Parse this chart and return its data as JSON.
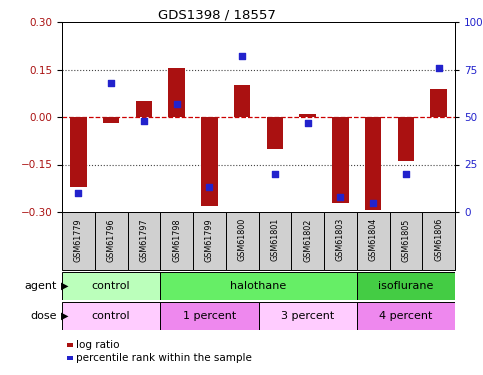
{
  "title": "GDS1398 / 18557",
  "samples": [
    "GSM61779",
    "GSM61796",
    "GSM61797",
    "GSM61798",
    "GSM61799",
    "GSM61800",
    "GSM61801",
    "GSM61802",
    "GSM61803",
    "GSM61804",
    "GSM61805",
    "GSM61806"
  ],
  "log_ratio": [
    -0.22,
    -0.02,
    0.05,
    0.155,
    -0.28,
    0.1,
    -0.1,
    0.01,
    -0.27,
    -0.295,
    -0.14,
    0.09
  ],
  "percentile_rank": [
    10,
    68,
    48,
    57,
    13,
    82,
    20,
    47,
    8,
    5,
    20,
    76
  ],
  "bar_color": "#aa1111",
  "dot_color": "#2222cc",
  "ylim": [
    -0.3,
    0.3
  ],
  "yticks": [
    -0.3,
    -0.15,
    0.0,
    0.15,
    0.3
  ],
  "hline_color": "#cc0000",
  "dotted_line_color": "#444444",
  "right_ylim": [
    0,
    100
  ],
  "right_yticks": [
    0,
    25,
    50,
    75,
    100
  ],
  "right_yticklabels": [
    "0",
    "25",
    "50",
    "75",
    "100%"
  ],
  "agent_groups": [
    {
      "label": "control",
      "start": 0,
      "end": 3,
      "color": "#bbffbb"
    },
    {
      "label": "halothane",
      "start": 3,
      "end": 9,
      "color": "#66ee66"
    },
    {
      "label": "isoflurane",
      "start": 9,
      "end": 12,
      "color": "#44cc44"
    }
  ],
  "dose_groups": [
    {
      "label": "control",
      "start": 0,
      "end": 3,
      "color": "#ffccff"
    },
    {
      "label": "1 percent",
      "start": 3,
      "end": 6,
      "color": "#ee88ee"
    },
    {
      "label": "3 percent",
      "start": 6,
      "end": 9,
      "color": "#ffccff"
    },
    {
      "label": "4 percent",
      "start": 9,
      "end": 12,
      "color": "#ee88ee"
    }
  ],
  "legend_log_ratio": "log ratio",
  "legend_percentile": "percentile rank within the sample",
  "agent_label": "agent",
  "dose_label": "dose",
  "sample_box_color": "#d0d0d0",
  "bar_width": 0.5
}
